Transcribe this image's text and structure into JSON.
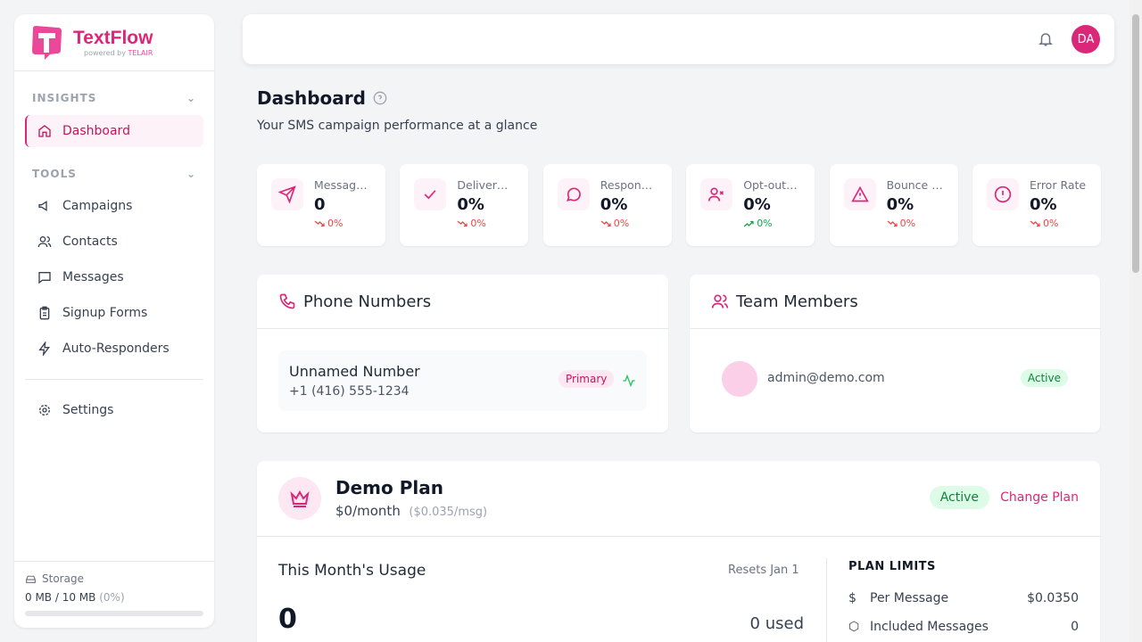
{
  "brand": {
    "name": "TextFlow",
    "powered_by": "powered by ",
    "powered_brand": "TELAIR"
  },
  "sidebar": {
    "insights_label": "INSIGHTS",
    "tools_label": "TOOLS",
    "items": [
      {
        "label": "Dashboard",
        "icon": "home-icon"
      },
      {
        "label": "Campaigns",
        "icon": "megaphone-icon"
      },
      {
        "label": "Contacts",
        "icon": "users-icon"
      },
      {
        "label": "Messages",
        "icon": "message-icon"
      },
      {
        "label": "Signup Forms",
        "icon": "clipboard-icon"
      },
      {
        "label": "Auto-Responders",
        "icon": "zap-icon"
      },
      {
        "label": "Settings",
        "icon": "gear-icon"
      }
    ],
    "storage": {
      "label": "Storage",
      "used": "0 MB / 10 MB",
      "percent_text": "(0%)",
      "percent": 0
    }
  },
  "header": {
    "avatar": "DA"
  },
  "page": {
    "title": "Dashboard",
    "subtitle": "Your SMS campaign performance at a glance"
  },
  "stats": [
    {
      "label": "Messages Sent",
      "value": "0",
      "trend": "0%",
      "direction": "down"
    },
    {
      "label": "Delivery Rate",
      "value": "0%",
      "trend": "0%",
      "direction": "down"
    },
    {
      "label": "Response Rate",
      "value": "0%",
      "trend": "0%",
      "direction": "down"
    },
    {
      "label": "Opt-out Rate",
      "value": "0%",
      "trend": "0%",
      "direction": "up"
    },
    {
      "label": "Bounce Rate",
      "value": "0%",
      "trend": "0%",
      "direction": "down"
    },
    {
      "label": "Error Rate",
      "value": "0%",
      "trend": "0%",
      "direction": "down"
    }
  ],
  "phone": {
    "title": "Phone Numbers",
    "name": "Unnamed Number",
    "number": "+1 (416) 555-1234",
    "badge": "Primary"
  },
  "team": {
    "title": "Team Members",
    "email": "admin@demo.com",
    "status": "Active"
  },
  "plan": {
    "name": "Demo Plan",
    "price": "$0/month",
    "per_msg": "($0.035/msg)",
    "status": "Active",
    "change": "Change Plan",
    "usage_title": "This Month's Usage",
    "resets": "Resets Jan 1",
    "count": "0",
    "used": "0 used",
    "limits_title": "PLAN LIMITS",
    "limits": [
      {
        "label": "Per Message",
        "value": "$0.0350"
      },
      {
        "label": "Included Messages",
        "value": "0"
      }
    ]
  },
  "colors": {
    "accent": "#db2777",
    "success": "#16a34a",
    "danger": "#ef4444"
  }
}
